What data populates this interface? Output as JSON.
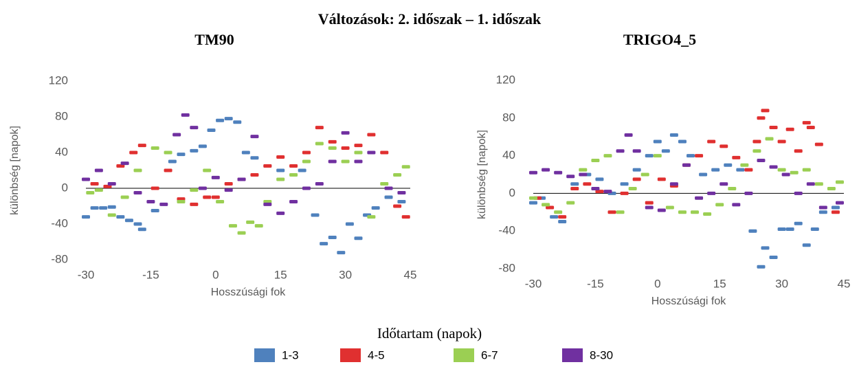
{
  "title": "Változások: 2. időszak – 1. időszak",
  "legend_title": "Időtartam (napok)",
  "chart_data": [
    {
      "type": "scatter",
      "title": "TM90",
      "xlabel": "Hosszúsági fok",
      "ylabel": "különbség [napok]",
      "xlim": [
        -30,
        45
      ],
      "ylim": [
        -80,
        120
      ],
      "xticks": [
        -30,
        -15,
        0,
        15,
        30,
        45
      ],
      "yticks": [
        -80,
        -40,
        0,
        40,
        80,
        120
      ],
      "series": [
        {
          "name": "1-3",
          "color": "#4f81bd",
          "x": [
            -30,
            -28,
            -26,
            -24,
            -22,
            -20,
            -18,
            -17,
            -14,
            -10,
            -8,
            -5,
            -3,
            -1,
            1,
            3,
            5,
            7,
            9,
            12,
            15,
            20,
            23,
            25,
            27,
            29,
            31,
            33,
            35,
            37,
            40,
            43
          ],
          "values": [
            -32,
            -22,
            -22,
            -21,
            -32,
            -36,
            -40,
            -46,
            -25,
            30,
            38,
            42,
            47,
            65,
            76,
            78,
            74,
            40,
            34,
            25,
            20,
            20,
            -30,
            -62,
            -55,
            -72,
            -40,
            -56,
            -30,
            -22,
            -10,
            -15
          ]
        },
        {
          "name": "4-5",
          "color": "#e03030",
          "x": [
            -28,
            -25,
            -22,
            -19,
            -17,
            -14,
            -11,
            -8,
            -5,
            -2,
            0,
            3,
            6,
            9,
            12,
            15,
            18,
            21,
            24,
            27,
            30,
            33,
            36,
            39,
            42,
            44
          ],
          "values": [
            5,
            2,
            25,
            40,
            48,
            0,
            20,
            -12,
            -18,
            -10,
            -10,
            5,
            10,
            15,
            25,
            35,
            25,
            40,
            68,
            52,
            45,
            48,
            60,
            40,
            -20,
            -32
          ]
        },
        {
          "name": "6-7",
          "color": "#9bcf53",
          "x": [
            -29,
            -27,
            -24,
            -21,
            -18,
            -14,
            -11,
            -8,
            -5,
            -2,
            1,
            4,
            6,
            8,
            10,
            12,
            15,
            18,
            21,
            24,
            27,
            30,
            33,
            36,
            39,
            42,
            44
          ],
          "values": [
            -5,
            -2,
            -30,
            -10,
            20,
            45,
            40,
            -15,
            -2,
            20,
            -15,
            -42,
            -50,
            -38,
            -42,
            -15,
            10,
            15,
            30,
            50,
            45,
            30,
            40,
            -32,
            5,
            15,
            24
          ]
        },
        {
          "name": "8-30",
          "color": "#7030a0",
          "x": [
            -30,
            -27,
            -24,
            -21,
            -18,
            -15,
            -12,
            -9,
            -7,
            -5,
            -3,
            0,
            3,
            6,
            9,
            12,
            15,
            18,
            21,
            24,
            27,
            30,
            33,
            36,
            40,
            43
          ],
          "values": [
            10,
            20,
            5,
            28,
            -5,
            -15,
            -18,
            60,
            82,
            68,
            0,
            12,
            -2,
            10,
            58,
            -18,
            -28,
            -15,
            0,
            5,
            30,
            62,
            30,
            40,
            0,
            -5
          ]
        }
      ]
    },
    {
      "type": "scatter",
      "title": "TRIGO4_5",
      "xlabel": "Hosszúsági fok",
      "ylabel": "különbség [napok]",
      "xlim": [
        -30,
        45
      ],
      "ylim": [
        -80,
        120
      ],
      "xticks": [
        -30,
        -15,
        0,
        15,
        30,
        45
      ],
      "yticks": [
        -80,
        -40,
        0,
        40,
        80,
        120
      ],
      "series": [
        {
          "name": "1-3",
          "color": "#4f81bd",
          "x": [
            -30,
            -28,
            -25,
            -23,
            -20,
            -17,
            -14,
            -11,
            -8,
            -5,
            -2,
            0,
            2,
            4,
            6,
            8,
            11,
            14,
            17,
            20,
            23,
            25,
            26,
            28,
            30,
            32,
            34,
            36,
            38,
            40,
            43
          ],
          "values": [
            -10,
            -5,
            -25,
            -30,
            10,
            20,
            15,
            0,
            10,
            25,
            40,
            55,
            45,
            62,
            55,
            40,
            20,
            25,
            30,
            25,
            -40,
            -78,
            -58,
            -68,
            -38,
            -38,
            -32,
            -55,
            -38,
            -20,
            -15
          ]
        },
        {
          "name": "4-5",
          "color": "#e03030",
          "x": [
            -29,
            -26,
            -23,
            -20,
            -17,
            -14,
            -11,
            -8,
            -5,
            -2,
            1,
            4,
            7,
            10,
            13,
            16,
            19,
            22,
            24,
            25,
            26,
            28,
            30,
            32,
            34,
            36,
            37,
            39,
            43
          ],
          "values": [
            -5,
            -15,
            -25,
            5,
            10,
            2,
            -20,
            0,
            15,
            -10,
            15,
            8,
            30,
            40,
            55,
            50,
            38,
            25,
            55,
            80,
            88,
            70,
            55,
            68,
            45,
            75,
            70,
            52,
            -20
          ]
        },
        {
          "name": "6-7",
          "color": "#9bcf53",
          "x": [
            -30,
            -27,
            -24,
            -21,
            -18,
            -15,
            -12,
            -9,
            -6,
            -3,
            0,
            3,
            6,
            9,
            12,
            15,
            18,
            21,
            24,
            27,
            30,
            33,
            36,
            39,
            42,
            44
          ],
          "values": [
            -5,
            -12,
            -20,
            -10,
            25,
            35,
            40,
            -20,
            5,
            20,
            40,
            -15,
            -20,
            -20,
            -22,
            -12,
            5,
            30,
            45,
            58,
            25,
            22,
            25,
            10,
            5,
            12
          ]
        },
        {
          "name": "8-30",
          "color": "#7030a0",
          "x": [
            -30,
            -27,
            -24,
            -21,
            -18,
            -15,
            -12,
            -9,
            -7,
            -5,
            -2,
            1,
            4,
            7,
            10,
            13,
            16,
            19,
            22,
            25,
            28,
            31,
            34,
            37,
            40,
            44
          ],
          "values": [
            22,
            25,
            22,
            18,
            20,
            5,
            2,
            45,
            62,
            45,
            -15,
            -18,
            10,
            30,
            -5,
            0,
            10,
            -12,
            0,
            35,
            28,
            20,
            0,
            10,
            -15,
            -10
          ]
        }
      ]
    }
  ]
}
